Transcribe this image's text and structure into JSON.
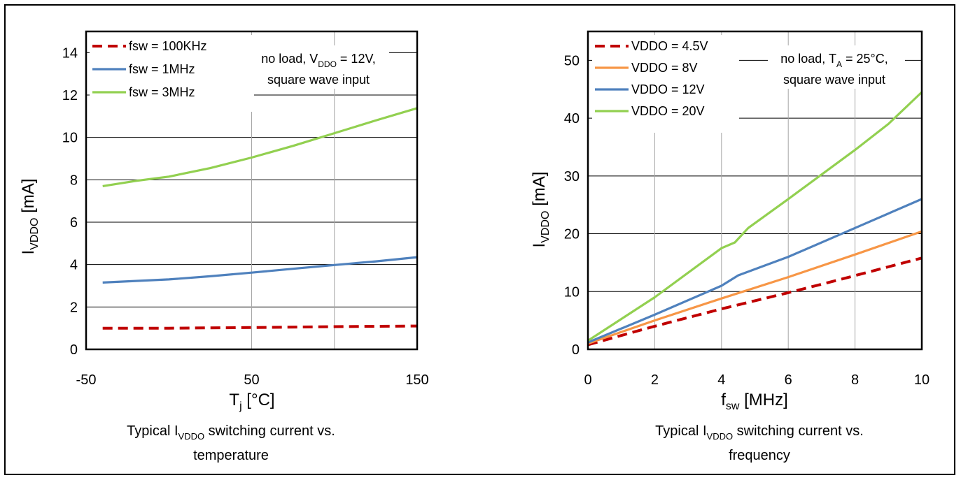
{
  "chart_data": [
    {
      "type": "line",
      "ylabel": "I",
      "ylabel_sub": "VDDO",
      "ylabel_unit": " [mA]",
      "xlabel": "T",
      "xlabel_sub": "j",
      "xlabel_unit": " [°C]",
      "xlim": [
        -50,
        150
      ],
      "ylim": [
        0,
        15
      ],
      "xticks": [
        -50,
        50,
        150
      ],
      "yticks": [
        0,
        2,
        4,
        6,
        8,
        10,
        12,
        14
      ],
      "grid": "on",
      "legend_position": "top-left",
      "series": [
        {
          "name": "fsw = 100KHz",
          "color": "#c00000",
          "dash": true,
          "x": [
            -40,
            0,
            50,
            100,
            150
          ],
          "y": [
            1.0,
            1.0,
            1.03,
            1.07,
            1.1
          ]
        },
        {
          "name": "fsw = 1MHz",
          "color": "#4f81bd",
          "dash": false,
          "x": [
            -40,
            0,
            25,
            50,
            75,
            100,
            125,
            150
          ],
          "y": [
            3.15,
            3.3,
            3.45,
            3.62,
            3.8,
            3.98,
            4.15,
            4.35
          ]
        },
        {
          "name": "fsw = 3MHz",
          "color": "#92d050",
          "dash": false,
          "x": [
            -40,
            -20,
            0,
            25,
            50,
            75,
            100,
            125,
            150
          ],
          "y": [
            7.7,
            7.95,
            8.15,
            8.55,
            9.05,
            9.6,
            10.2,
            10.8,
            11.38
          ]
        }
      ],
      "annotation": {
        "line1": "no load, V",
        "line1_sub": "DDO",
        "line1_tail": " = 12V,",
        "line2": "square wave input"
      },
      "caption": {
        "prefix": "Typical I",
        "sub": "VDDO",
        "suffix": " switching current vs.",
        "line2": "temperature"
      }
    },
    {
      "type": "line",
      "ylabel": "I",
      "ylabel_sub": "VDDO",
      "ylabel_unit": " [mA]",
      "xlabel": "f",
      "xlabel_sub": "sw",
      "xlabel_unit": " [MHz]",
      "xlim": [
        0,
        10
      ],
      "ylim": [
        0,
        55
      ],
      "xticks": [
        0,
        2,
        4,
        6,
        8,
        10
      ],
      "yticks": [
        0,
        10,
        20,
        30,
        40,
        50
      ],
      "grid": "on",
      "legend_position": "top-left",
      "series": [
        {
          "name": "VDDO = 4.5V",
          "color": "#c00000",
          "dash": true,
          "x": [
            0,
            2,
            4,
            6,
            7.5,
            10
          ],
          "y": [
            0.8,
            4.0,
            7.0,
            9.8,
            12.0,
            15.8
          ]
        },
        {
          "name": "VDDO = 8V",
          "color": "#f79646",
          "dash": false,
          "x": [
            0,
            2,
            4,
            6,
            8,
            10
          ],
          "y": [
            1.0,
            5.0,
            8.8,
            12.5,
            16.4,
            20.4
          ]
        },
        {
          "name": "VDDO = 12V",
          "color": "#4f81bd",
          "dash": false,
          "x": [
            0,
            2,
            4,
            4.5,
            6,
            8,
            10
          ],
          "y": [
            1.2,
            6.0,
            11.0,
            12.8,
            16.0,
            21.0,
            26.0
          ]
        },
        {
          "name": "VDDO = 20V",
          "color": "#92d050",
          "dash": false,
          "x": [
            0,
            2,
            4,
            4.4,
            4.8,
            6,
            8,
            9,
            10
          ],
          "y": [
            1.5,
            9.0,
            17.5,
            18.5,
            21.0,
            26.0,
            34.5,
            39.0,
            44.5
          ]
        }
      ],
      "annotation": {
        "line1": "no load, T",
        "line1_sub": "A",
        "line1_tail": " = 25°C,",
        "line2": "square wave input"
      },
      "caption": {
        "prefix": "Typical I",
        "sub": "VDDO",
        "suffix": " switching current vs.",
        "line2": "frequency"
      }
    }
  ]
}
